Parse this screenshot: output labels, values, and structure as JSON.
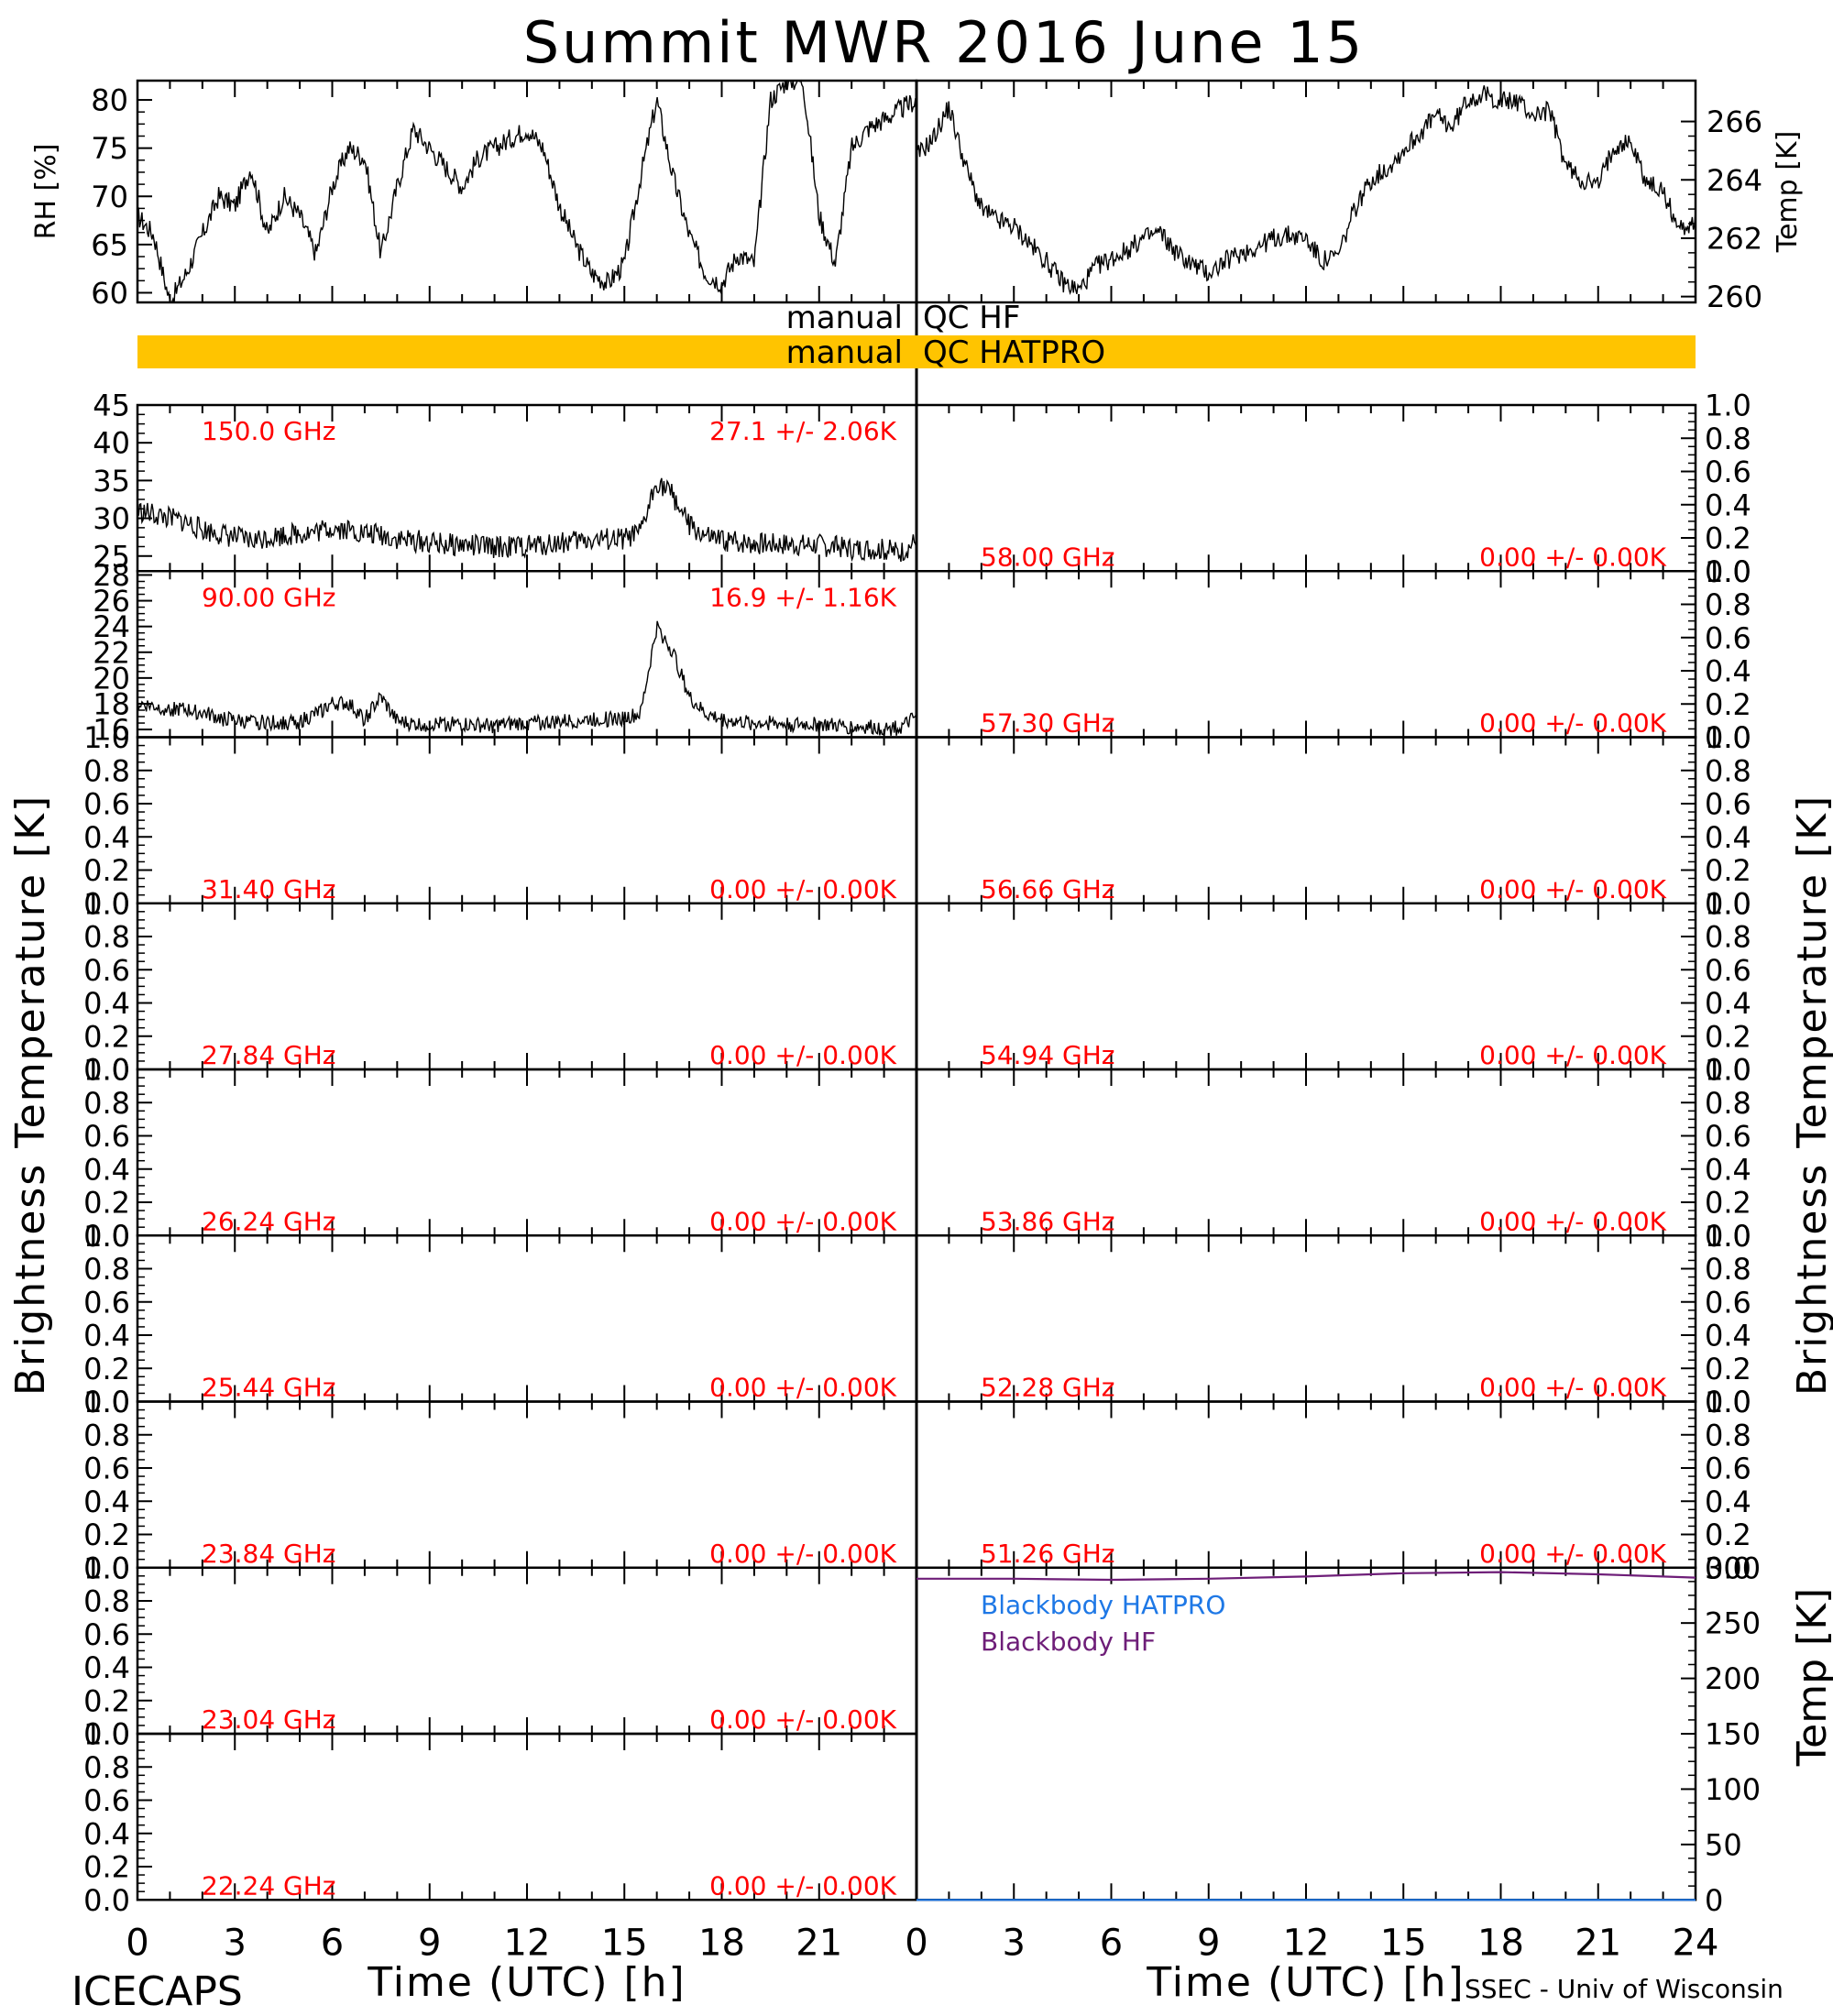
{
  "title": "Summit MWR 2016 June 15",
  "footer": {
    "left": "ICECAPS",
    "right": "SSEC - Univ of Wisconsin"
  },
  "colors": {
    "axis": "#000000",
    "annotation": "#ff0000",
    "qc_bar": "#ffc400",
    "blackbody_hatpro": "#1e78e6",
    "blackbody_hf": "#6e1e78",
    "trace": "#000000"
  },
  "qc": {
    "hf_prefix": "manual",
    "hf_label": "QC HF",
    "hatpro_prefix": "manual",
    "hatpro_label": "QC HATPRO",
    "hatpro_flagged": true
  },
  "left_ylabel": "Brightness Temperature [K]",
  "right_ylabel": "Brightness Temperature [K]",
  "bottom_right_ylabel": "Temp [K]",
  "xlabel_left": "Time (UTC) [h]",
  "xlabel_right": "Time (UTC) [h]",
  "chart_data": [
    {
      "type": "line",
      "panel": "RH",
      "ylabel": "RH [%]",
      "ylim": [
        59,
        82
      ],
      "yticks": [
        "60",
        "65",
        "70",
        "75",
        "80"
      ],
      "xlim": [
        0,
        24
      ],
      "x": [
        0,
        0.5,
        1,
        1.5,
        2,
        2.5,
        3,
        3.5,
        4,
        4.5,
        5,
        5.5,
        6,
        6.5,
        7,
        7.5,
        8,
        8.5,
        9,
        9.5,
        10,
        10.5,
        11,
        11.5,
        12,
        12.5,
        13,
        13.5,
        14,
        14.5,
        15,
        15.5,
        16,
        16.5,
        17,
        17.5,
        18,
        18.5,
        19,
        19.5,
        20,
        20.5,
        21,
        21.5,
        22,
        22.5,
        23,
        23.5,
        24
      ],
      "values": [
        68,
        66,
        59,
        62,
        66,
        70,
        69,
        73,
        66,
        70,
        68,
        64,
        71,
        75,
        74,
        64,
        71,
        77,
        75,
        73,
        71,
        74,
        75,
        76,
        77,
        75,
        69,
        65,
        62,
        61,
        63,
        72,
        80,
        72,
        66,
        62,
        61,
        64,
        63,
        80,
        82,
        82,
        68,
        63,
        75,
        77,
        78,
        79,
        80
      ]
    },
    {
      "type": "line",
      "panel": "Temp",
      "ylabel": "Temp [K]",
      "ylim": [
        259.8,
        267.4
      ],
      "yticks": [
        "260",
        "262",
        "264",
        "266"
      ],
      "xlim": [
        0,
        24
      ],
      "x": [
        0,
        0.5,
        1,
        1.5,
        2,
        2.5,
        3,
        3.5,
        4,
        4.5,
        5,
        5.5,
        6,
        6.5,
        7,
        7.5,
        8,
        8.5,
        9,
        9.5,
        10,
        10.5,
        11,
        11.5,
        12,
        12.5,
        13,
        13.5,
        14,
        14.5,
        15,
        15.5,
        16,
        16.5,
        17,
        17.5,
        18,
        18.5,
        19,
        19.5,
        20,
        20.5,
        21,
        21.5,
        22,
        22.5,
        23,
        23.5,
        24
      ],
      "values": [
        264.8,
        265.4,
        266.5,
        264.5,
        263,
        262.6,
        262.4,
        261.8,
        261.2,
        260.5,
        260.2,
        261,
        261.3,
        261.6,
        262,
        262.2,
        261.5,
        261.1,
        260.8,
        261.2,
        261.5,
        261.7,
        262,
        262.1,
        262,
        261.2,
        261.4,
        263,
        264,
        264.4,
        265,
        265.6,
        266.2,
        265.8,
        266.8,
        266.9,
        266.7,
        266.7,
        266.2,
        266.4,
        264.5,
        264,
        263.8,
        265.2,
        265.3,
        263.9,
        263.6,
        262.3,
        262.6
      ]
    },
    {
      "type": "line",
      "panel": "150.0 GHz",
      "label": "150.0 GHz",
      "stat": "27.1 +/-  2.06K",
      "ylim": [
        23,
        45
      ],
      "yticks": [
        "25",
        "30",
        "35",
        "40",
        "45"
      ],
      "xlim": [
        0,
        24
      ],
      "x": [
        0,
        0.5,
        1,
        1.5,
        2,
        2.5,
        3,
        3.5,
        4,
        4.5,
        5,
        5.5,
        6,
        6.5,
        7,
        7.5,
        8,
        8.5,
        9,
        9.5,
        10,
        10.5,
        11,
        11.5,
        12,
        12.5,
        13,
        13.5,
        14,
        14.5,
        15,
        15.5,
        16,
        16.5,
        17,
        17.5,
        18,
        18.5,
        19,
        19.5,
        20,
        20.5,
        21,
        21.5,
        22,
        22.5,
        23,
        23.5,
        24
      ],
      "values": [
        31,
        30.5,
        30,
        29.5,
        28.5,
        28,
        27.5,
        27,
        27.5,
        27.8,
        28,
        28.2,
        28.8,
        28.5,
        28,
        27.8,
        27.3,
        27,
        26.8,
        26.5,
        26.5,
        26.3,
        26.2,
        26.2,
        26.3,
        26.5,
        26.8,
        27,
        27.2,
        27.2,
        27.2,
        28,
        35,
        33,
        29,
        27.5,
        27,
        26.8,
        26.7,
        26.6,
        26.6,
        26.5,
        26.5,
        26.2,
        26,
        26,
        25.8,
        25.5,
        27
      ]
    },
    {
      "type": "line",
      "panel": "90.00 GHz",
      "label": "90.00 GHz",
      "stat": "16.9 +/-  1.16K",
      "ylim": [
        15.4,
        28.3
      ],
      "yticks": [
        "16",
        "18",
        "20",
        "22",
        "24",
        "26",
        "28"
      ],
      "xlim": [
        0,
        24
      ],
      "x": [
        0,
        0.5,
        1,
        1.5,
        2,
        2.5,
        3,
        3.5,
        4,
        4.5,
        5,
        5.5,
        6,
        6.5,
        7,
        7.5,
        8,
        8.5,
        9,
        9.5,
        10,
        10.5,
        11,
        11.5,
        12,
        12.5,
        13,
        13.5,
        14,
        14.5,
        15,
        15.5,
        16,
        16.5,
        17,
        17.5,
        18,
        18.5,
        19,
        19.5,
        20,
        20.5,
        21,
        21.5,
        22,
        22.5,
        23,
        23.5,
        24
      ],
      "values": [
        18,
        17.8,
        17.6,
        17.5,
        17.3,
        16.9,
        16.7,
        16.5,
        16.6,
        16.5,
        16.6,
        17.2,
        18,
        18,
        16.8,
        18.5,
        16.6,
        16.4,
        16.4,
        16.4,
        16.4,
        16.3,
        16.3,
        16.4,
        16.5,
        16.5,
        16.6,
        16.7,
        16.8,
        16.8,
        16.9,
        17.2,
        24,
        22,
        18.5,
        17.2,
        16.8,
        16.6,
        16.5,
        16.5,
        16.4,
        16.4,
        16.4,
        16.3,
        16.2,
        16.2,
        16.1,
        16.1,
        17
      ]
    },
    {
      "type": "line",
      "panel": "31.40 GHz",
      "label": "31.40 GHz",
      "stat": "0.00 +/-  0.00K",
      "ylim": [
        0,
        1
      ],
      "yticks": [
        "0.0",
        "0.2",
        "0.4",
        "0.6",
        "0.8",
        "1.0"
      ],
      "values": []
    },
    {
      "type": "line",
      "panel": "27.84 GHz",
      "label": "27.84 GHz",
      "stat": "0.00 +/-  0.00K",
      "ylim": [
        0,
        1
      ],
      "yticks": [
        "0.0",
        "0.2",
        "0.4",
        "0.6",
        "0.8",
        "1.0"
      ],
      "values": []
    },
    {
      "type": "line",
      "panel": "26.24 GHz",
      "label": "26.24 GHz",
      "stat": "0.00 +/-  0.00K",
      "ylim": [
        0,
        1
      ],
      "yticks": [
        "0.0",
        "0.2",
        "0.4",
        "0.6",
        "0.8",
        "1.0"
      ],
      "values": []
    },
    {
      "type": "line",
      "panel": "25.44 GHz",
      "label": "25.44 GHz",
      "stat": "0.00 +/-  0.00K",
      "ylim": [
        0,
        1
      ],
      "yticks": [
        "0.0",
        "0.2",
        "0.4",
        "0.6",
        "0.8",
        "1.0"
      ],
      "values": []
    },
    {
      "type": "line",
      "panel": "23.84 GHz",
      "label": "23.84 GHz",
      "stat": "0.00 +/-  0.00K",
      "ylim": [
        0,
        1
      ],
      "yticks": [
        "0.0",
        "0.2",
        "0.4",
        "0.6",
        "0.8",
        "1.0"
      ],
      "values": []
    },
    {
      "type": "line",
      "panel": "23.04 GHz",
      "label": "23.04 GHz",
      "stat": "0.00 +/-  0.00K",
      "ylim": [
        0,
        1
      ],
      "yticks": [
        "0.0",
        "0.2",
        "0.4",
        "0.6",
        "0.8",
        "1.0"
      ],
      "values": []
    },
    {
      "type": "line",
      "panel": "22.24 GHz",
      "label": "22.24 GHz",
      "stat": "0.00 +/-  0.00K",
      "ylim": [
        0,
        1
      ],
      "yticks": [
        "0.0",
        "0.2",
        "0.4",
        "0.6",
        "0.8",
        "1.0"
      ],
      "values": []
    },
    {
      "type": "line",
      "panel": "58.00 GHz",
      "label": "58.00 GHz",
      "stat": "0.00 +/-  0.00K",
      "ylim": [
        0,
        1
      ],
      "yticks": [
        "0.0",
        "0.2",
        "0.4",
        "0.6",
        "0.8",
        "1.0"
      ],
      "values": []
    },
    {
      "type": "line",
      "panel": "57.30 GHz",
      "label": "57.30 GHz",
      "stat": "0.00 +/-  0.00K",
      "ylim": [
        0,
        1
      ],
      "yticks": [
        "0.0",
        "0.2",
        "0.4",
        "0.6",
        "0.8",
        "1.0"
      ],
      "values": []
    },
    {
      "type": "line",
      "panel": "56.66 GHz",
      "label": "56.66 GHz",
      "stat": "0.00 +/-  0.00K",
      "ylim": [
        0,
        1
      ],
      "yticks": [
        "0.0",
        "0.2",
        "0.4",
        "0.6",
        "0.8",
        "1.0"
      ],
      "values": []
    },
    {
      "type": "line",
      "panel": "54.94 GHz",
      "label": "54.94 GHz",
      "stat": "0.00 +/-  0.00K",
      "ylim": [
        0,
        1
      ],
      "yticks": [
        "0.0",
        "0.2",
        "0.4",
        "0.6",
        "0.8",
        "1.0"
      ],
      "values": []
    },
    {
      "type": "line",
      "panel": "53.86 GHz",
      "label": "53.86 GHz",
      "stat": "0.00 +/-  0.00K",
      "ylim": [
        0,
        1
      ],
      "yticks": [
        "0.0",
        "0.2",
        "0.4",
        "0.6",
        "0.8",
        "1.0"
      ],
      "values": []
    },
    {
      "type": "line",
      "panel": "52.28 GHz",
      "label": "52.28 GHz",
      "stat": "0.00 +/-  0.00K",
      "ylim": [
        0,
        1
      ],
      "yticks": [
        "0.0",
        "0.2",
        "0.4",
        "0.6",
        "0.8",
        "1.0"
      ],
      "values": []
    },
    {
      "type": "line",
      "panel": "51.26 GHz",
      "label": "51.26 GHz",
      "stat": "0.00 +/-  0.00K",
      "ylim": [
        0,
        1
      ],
      "yticks": [
        "0.0",
        "0.2",
        "0.4",
        "0.6",
        "0.8",
        "1.0"
      ],
      "values": []
    },
    {
      "type": "line",
      "panel": "Blackbody",
      "ylabel": "Temp [K]",
      "ylim": [
        0,
        300
      ],
      "yticks": [
        "0",
        "50",
        "100",
        "150",
        "200",
        "250",
        "300"
      ],
      "xlim": [
        0,
        24
      ],
      "xticks": [
        "0",
        "3",
        "6",
        "9",
        "12",
        "15",
        "18",
        "21",
        "24"
      ],
      "x": [
        0,
        3,
        6,
        9,
        12,
        15,
        18,
        21,
        24
      ],
      "series": [
        {
          "name": "Blackbody HATPRO",
          "values": [
            0,
            0,
            0,
            0,
            0,
            0,
            0,
            0,
            0
          ]
        },
        {
          "name": "Blackbody HF",
          "values": [
            290,
            290,
            289,
            290,
            292,
            295,
            296,
            294,
            291
          ]
        }
      ]
    }
  ],
  "xticks_left": [
    "0",
    "3",
    "6",
    "9",
    "12",
    "15",
    "18",
    "21"
  ],
  "xticks_right": [
    "0",
    "3",
    "6",
    "9",
    "12",
    "15",
    "18",
    "21",
    "24"
  ]
}
